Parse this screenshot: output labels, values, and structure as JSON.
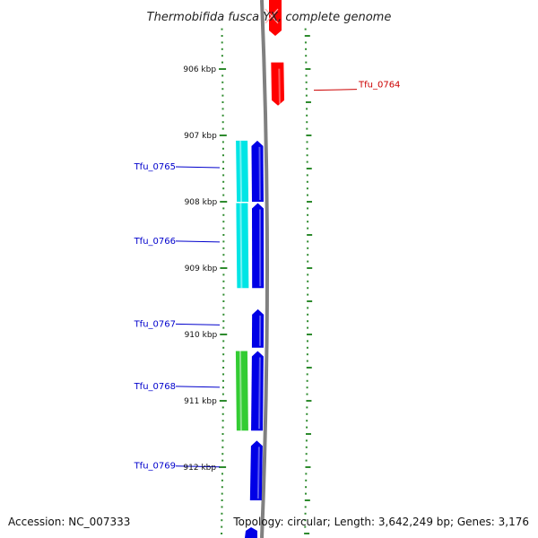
{
  "title": "Thermobifida fusca YX, complete genome",
  "accession": "Accession: NC_007333",
  "topology": "Topology: circular; Length: 3,642,249 bp; Genes: 3,176",
  "colors": {
    "forward_cds": "#0000e6",
    "reverse_cds": "#ff0000",
    "cyan_feature": "#00e5e5",
    "green_feature": "#33cc33",
    "tick": "#2e8b2e",
    "backbone": "#808080",
    "label_forward": "#0000cc",
    "label_reverse": "#cc0000"
  },
  "scale": {
    "start_kbp": 905.3,
    "end_kbp": 912.9,
    "unit": "kbp"
  },
  "tick_labels": [
    {
      "kbp": 906,
      "label": "906 kbp"
    },
    {
      "kbp": 907,
      "label": "907 kbp"
    },
    {
      "kbp": 908,
      "label": "908 kbp"
    },
    {
      "kbp": 909,
      "label": "909 kbp"
    },
    {
      "kbp": 910,
      "label": "910 kbp"
    },
    {
      "kbp": 911,
      "label": "911 kbp"
    },
    {
      "kbp": 912,
      "label": "912 kbp"
    }
  ],
  "genes": [
    {
      "label": "Tfu_0764",
      "strand": "reverse",
      "start_kbp": 905.9,
      "end_kbp": 906.55
    },
    {
      "label": "Tfu_0765",
      "strand": "forward",
      "start_kbp": 907.08,
      "end_kbp": 908.0
    },
    {
      "label": "Tfu_0766",
      "strand": "forward",
      "start_kbp": 908.02,
      "end_kbp": 909.3
    },
    {
      "label": "Tfu_0767",
      "strand": "forward",
      "start_kbp": 909.62,
      "end_kbp": 910.2
    },
    {
      "label": "Tfu_0768",
      "strand": "forward",
      "start_kbp": 910.25,
      "end_kbp": 911.45
    },
    {
      "label": "Tfu_0769",
      "strand": "forward",
      "start_kbp": 911.6,
      "end_kbp": 912.5
    }
  ],
  "cyan_features": [
    {
      "start_kbp": 907.08,
      "end_kbp": 908.0
    },
    {
      "start_kbp": 908.02,
      "end_kbp": 909.3
    }
  ],
  "green_features": [
    {
      "start_kbp": 910.25,
      "end_kbp": 911.45
    }
  ]
}
